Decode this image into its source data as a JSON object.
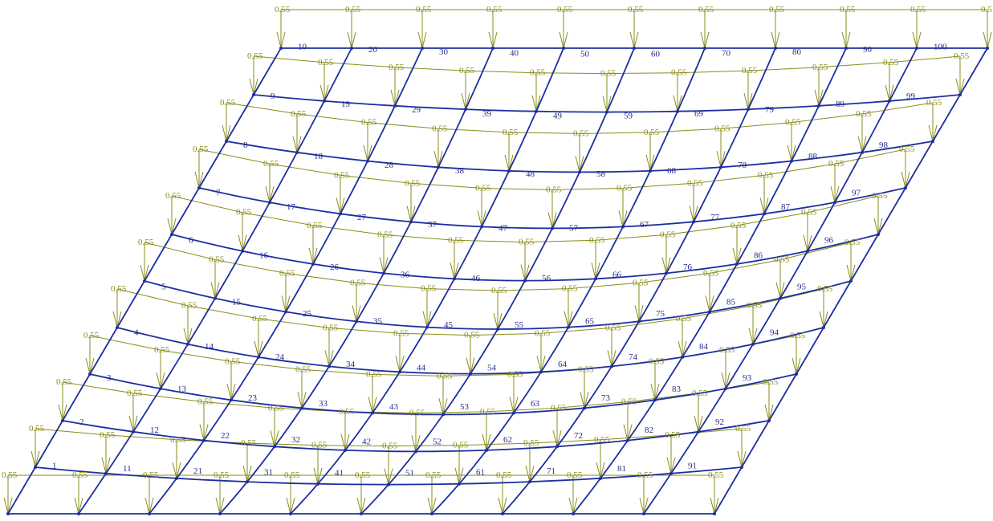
{
  "load_value_label": "0.55",
  "load_value_label_clipped": "0.5",
  "element_numbers": [
    "1",
    "2",
    "3",
    "4",
    "5",
    "6",
    "7",
    "8",
    "9",
    "10",
    "11",
    "12",
    "13",
    "14",
    "15",
    "16",
    "17",
    "18",
    "19",
    "20",
    "21",
    "22",
    "23",
    "24",
    "25",
    "26",
    "27",
    "28",
    "29",
    "30",
    "31",
    "32",
    "33",
    "34",
    "35",
    "36",
    "37",
    "38",
    "39",
    "40",
    "41",
    "42",
    "43",
    "44",
    "45",
    "46",
    "47",
    "48",
    "49",
    "50",
    "51",
    "52",
    "53",
    "54",
    "55",
    "56",
    "57",
    "58",
    "59",
    "60",
    "61",
    "62",
    "63",
    "64",
    "65",
    "66",
    "67",
    "68",
    "69",
    "70",
    "71",
    "72",
    "73",
    "74",
    "75",
    "76",
    "77",
    "78",
    "79",
    "80",
    "81",
    "82",
    "83",
    "84",
    "85",
    "86",
    "87",
    "88",
    "89",
    "90",
    "91",
    "92",
    "93",
    "94",
    "95",
    "96",
    "97",
    "98",
    "99",
    "100"
  ],
  "colors": {
    "mesh_line": "#1d2fa0",
    "node": "#1d2fa0",
    "load_line": "#8a8d1a",
    "load_label": "#8a8d1a",
    "element_label": "#2a2a8a",
    "background": "#ffffff"
  }
}
